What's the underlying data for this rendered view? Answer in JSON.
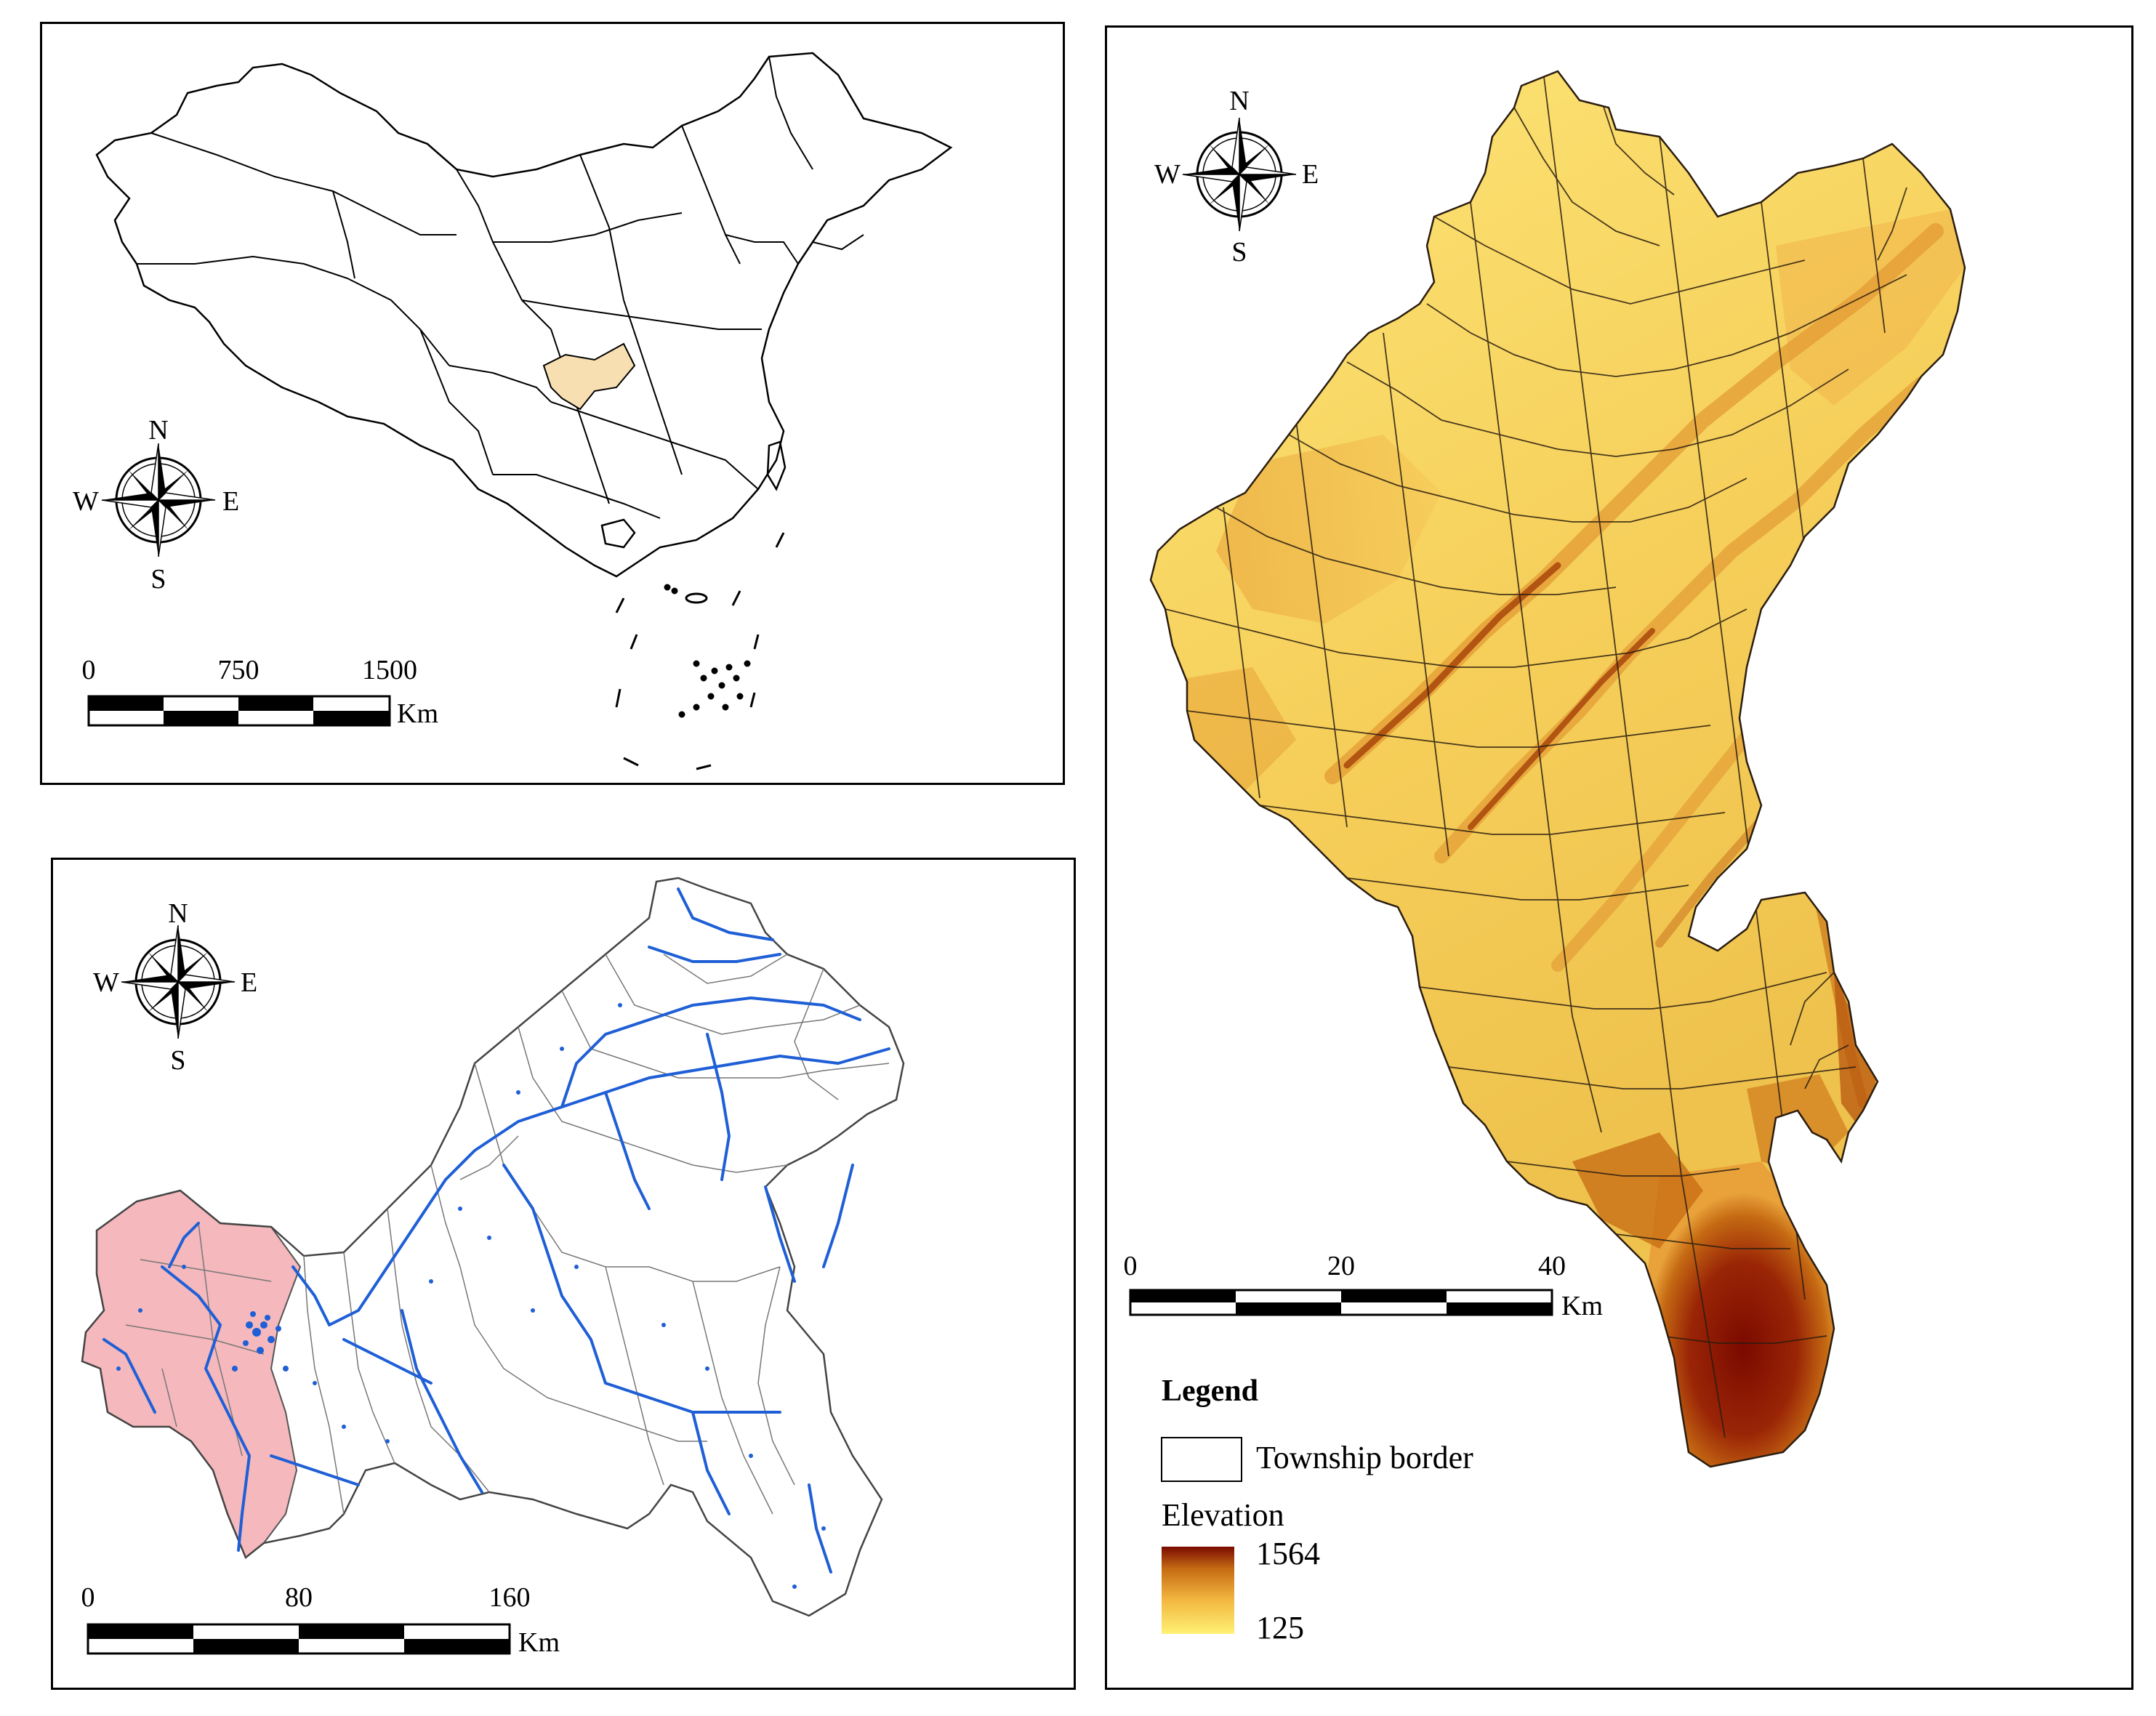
{
  "panels": {
    "china": {
      "compass": {
        "n": "N",
        "s": "S",
        "e": "E",
        "w": "W"
      },
      "scale": {
        "ticks": [
          "0",
          "750",
          "1500"
        ],
        "unit": "Km"
      },
      "colors": {
        "outline": "#000000",
        "highlight_fill": "#f7dfb2"
      }
    },
    "chongqing": {
      "compass": {
        "n": "N",
        "s": "S",
        "e": "E",
        "w": "W"
      },
      "scale": {
        "ticks": [
          "0",
          "80",
          "160"
        ],
        "unit": "Km"
      },
      "colors": {
        "outline": "#444444",
        "river": "#1f5fd6",
        "study_area_fill": "#f4b8bd"
      }
    },
    "study_area": {
      "compass": {
        "n": "N",
        "s": "S",
        "e": "E",
        "w": "W"
      },
      "scale": {
        "ticks": [
          "0",
          "20",
          "40"
        ],
        "unit": "Km"
      },
      "legend": {
        "title": "Legend",
        "township_label": "Township border",
        "elevation_label": "Elevation",
        "max": "1564",
        "min": "125"
      },
      "colors": {
        "elev_low": "#fff175",
        "elev_mid": "#f2b53e",
        "elev_high": "#c56a13",
        "elev_peak": "#7a0a00"
      }
    }
  }
}
